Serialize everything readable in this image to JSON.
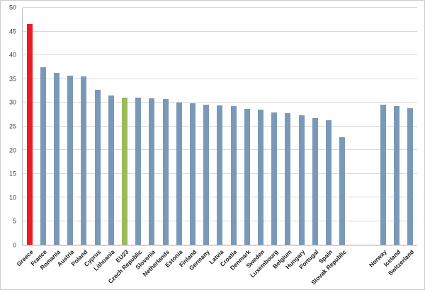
{
  "chart_data": {
    "type": "bar",
    "title": "",
    "xlabel": "",
    "ylabel": "",
    "ylim": [
      0,
      50
    ],
    "yticks": [
      0,
      5,
      10,
      15,
      20,
      25,
      30,
      35,
      40,
      45,
      50
    ],
    "grid": true,
    "legend": "none",
    "bar_color_default": "#7a99b8",
    "highlight_color_red": "#ed1c24",
    "highlight_color_green": "#9bbb59",
    "items": [
      {
        "label": "Greece",
        "value": 46.5,
        "color": "#ed1c24"
      },
      {
        "label": "France",
        "value": 37.5
      },
      {
        "label": "Romania",
        "value": 36.2
      },
      {
        "label": "Austria",
        "value": 35.7
      },
      {
        "label": "Poland",
        "value": 35.5
      },
      {
        "label": "Cyprus",
        "value": 32.7
      },
      {
        "label": "Lithuania",
        "value": 31.5
      },
      {
        "label": "EU23",
        "value": 31.0,
        "color": "#9bbb59"
      },
      {
        "label": "Czech Republic",
        "value": 31.0
      },
      {
        "label": "Slovenia",
        "value": 30.9
      },
      {
        "label": "Netherlands",
        "value": 30.8
      },
      {
        "label": "Estonia",
        "value": 30.0
      },
      {
        "label": "Finland",
        "value": 29.8
      },
      {
        "label": "Germany",
        "value": 29.5
      },
      {
        "label": "Latvia",
        "value": 29.4
      },
      {
        "label": "Croatia",
        "value": 29.2
      },
      {
        "label": "Denmark",
        "value": 28.7
      },
      {
        "label": "Sweden",
        "value": 28.5
      },
      {
        "label": "Luxembourg",
        "value": 27.9
      },
      {
        "label": "Belgium",
        "value": 27.7
      },
      {
        "label": "Hungary",
        "value": 27.3
      },
      {
        "label": "Portugal",
        "value": 26.7
      },
      {
        "label": "Spain",
        "value": 26.2
      },
      {
        "label": "Slovak Republic",
        "value": 22.7
      },
      {
        "label": "",
        "gap": true
      },
      {
        "label": "",
        "gap": true
      },
      {
        "label": "Norway",
        "value": 29.5
      },
      {
        "label": "Iceland",
        "value": 29.3
      },
      {
        "label": "Switzerland",
        "value": 28.8
      }
    ]
  }
}
